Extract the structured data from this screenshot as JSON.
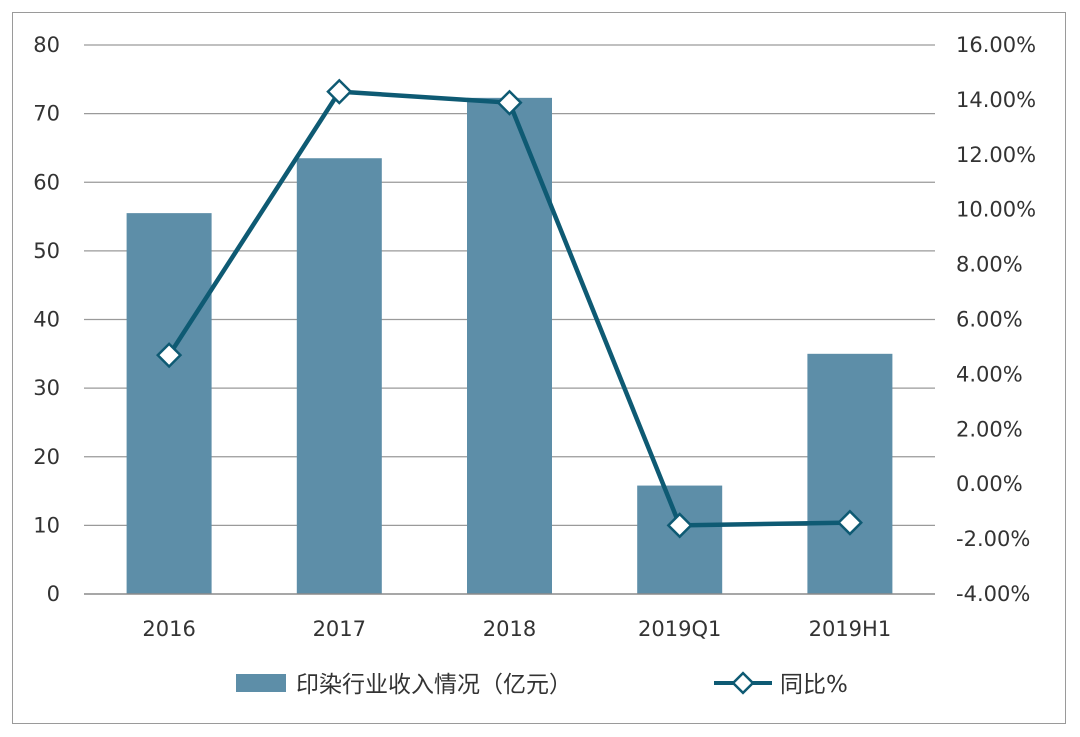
{
  "chart_data": {
    "type": "bar+line",
    "categories": [
      "2016",
      "2017",
      "2018",
      "2019Q1",
      "2019H1"
    ],
    "series": [
      {
        "name": "印染行业收入情况（亿元）",
        "type": "bar",
        "axis": "left",
        "values": [
          55.5,
          63.5,
          72.3,
          15.8,
          35.0
        ],
        "color": "#5d8ea8"
      },
      {
        "name": "同比%",
        "type": "line",
        "axis": "right",
        "values": [
          4.7,
          14.3,
          13.9,
          -1.5,
          -1.4
        ],
        "color": "#0e5a73"
      }
    ],
    "y_left": {
      "ylim": [
        0,
        80
      ],
      "ticks": [
        "0",
        "10",
        "20",
        "30",
        "40",
        "50",
        "60",
        "70",
        "80"
      ]
    },
    "y_right": {
      "ylim": [
        -4,
        16
      ],
      "ticks": [
        "-4.00%",
        "-2.00%",
        "0.00%",
        "2.00%",
        "4.00%",
        "6.00%",
        "8.00%",
        "10.00%",
        "12.00%",
        "14.00%",
        "16.00%"
      ]
    },
    "grid": "horizontal",
    "legend": "bottom"
  }
}
